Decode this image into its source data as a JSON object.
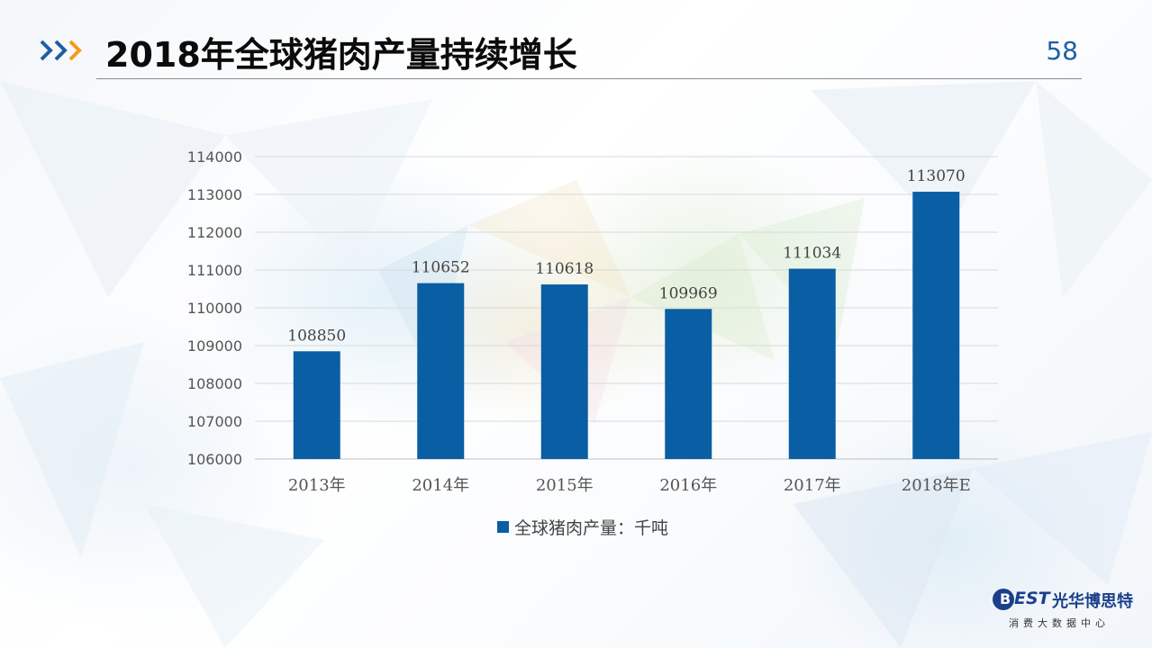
{
  "slide": {
    "title": "2018年全球猪肉产量持续增长",
    "page_number": "58"
  },
  "logo": {
    "mark": "B",
    "est": "EST",
    "name_cn": "光华博思特",
    "subtitle": "消费大数据中心"
  },
  "colors": {
    "bar": "#0a5ea4",
    "accent_blue": "#1f5fa0",
    "accent_orange": "#f39a1e"
  },
  "chart_data": {
    "type": "bar",
    "categories": [
      "2013年",
      "2014年",
      "2015年",
      "2016年",
      "2017年",
      "2018年E"
    ],
    "series": [
      {
        "name": "全球猪肉产量：千吨",
        "values": [
          108850,
          110652,
          110618,
          109969,
          111034,
          113070
        ]
      }
    ],
    "ylim": [
      106000,
      114000
    ],
    "yticks": [
      106000,
      107000,
      108000,
      109000,
      110000,
      111000,
      112000,
      113000,
      114000
    ],
    "data_labels": [
      "108850",
      "110652",
      "110618",
      "109969",
      "111034",
      "113070"
    ],
    "grid": true,
    "legend_position": "bottom"
  }
}
